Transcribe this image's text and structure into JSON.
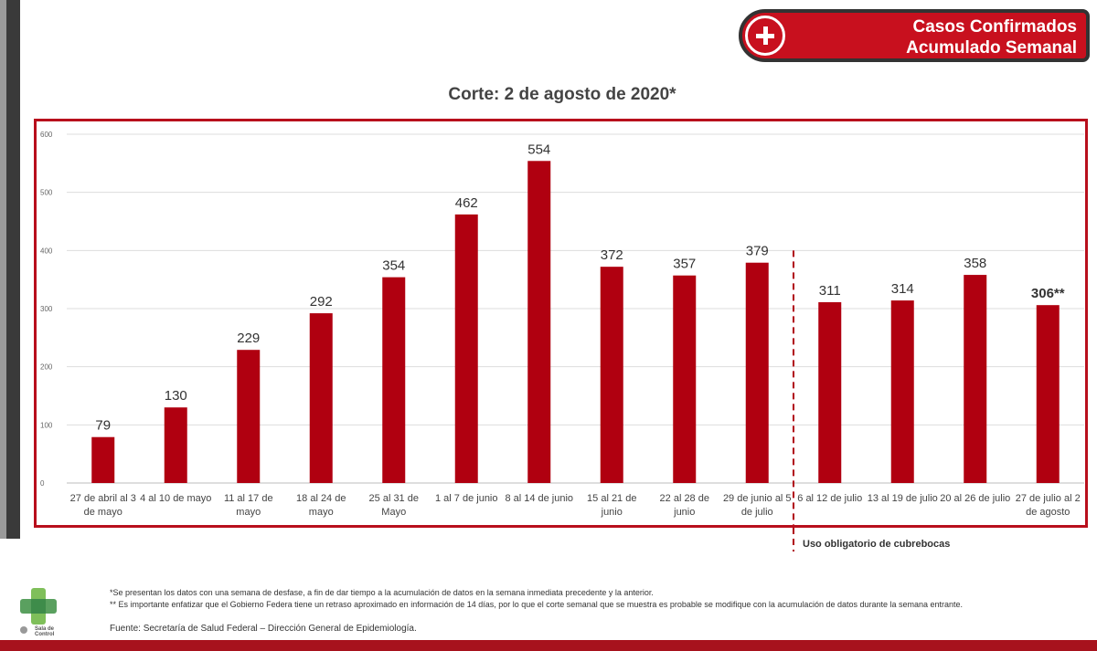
{
  "header": {
    "title_line1": "Casos Confirmados",
    "title_line2": "Acumulado Semanal",
    "accent_color": "#c8101e",
    "icon": "plus-icon"
  },
  "subtitle": "Corte: 2 de agosto de 2020*",
  "chart_data": {
    "type": "bar",
    "title": "",
    "xlabel": "",
    "ylabel": "",
    "ylim": [
      0,
      600
    ],
    "yticks": [
      0,
      100,
      200,
      300,
      400,
      500,
      600
    ],
    "grid": true,
    "bar_color": "#b00010",
    "categories": [
      [
        "27 de abril al 3",
        "de mayo"
      ],
      [
        "4 al 10 de mayo"
      ],
      [
        "11 al 17 de",
        "mayo"
      ],
      [
        "18 al 24 de",
        "mayo"
      ],
      [
        "25 al 31 de",
        "Mayo"
      ],
      [
        "1 al 7 de junio"
      ],
      [
        "8 al 14 de junio"
      ],
      [
        "15 al 21 de",
        "junio"
      ],
      [
        "22 al 28 de",
        "junio"
      ],
      [
        "29 de junio al 5",
        "de julio"
      ],
      [
        "6 al 12 de julio"
      ],
      [
        "13 al 19 de julio"
      ],
      [
        "20 al 26 de julio"
      ],
      [
        "27 de julio al 2",
        "de agosto"
      ]
    ],
    "values": [
      79,
      130,
      229,
      292,
      354,
      462,
      554,
      372,
      357,
      379,
      311,
      314,
      358,
      306
    ],
    "data_labels": [
      "79",
      "130",
      "229",
      "292",
      "354",
      "462",
      "554",
      "372",
      "357",
      "379",
      "311",
      "314",
      "358",
      "306**"
    ],
    "annotation": {
      "text": "Uso obligatorio de cubrebocas",
      "after_category_index": 9,
      "style": "dashed-vertical-line",
      "color": "#b00010"
    }
  },
  "footnotes": {
    "note1": "*Se presentan los datos con una semana de desfase, a fin de dar tiempo a la acumulación de datos en la semana inmediata precedente y la anterior.",
    "note2": "** Es importante enfatizar que el Gobierno Federa tiene un retraso aproximado en información de 14 días, por lo que el corte semanal que se muestra es probable se modifique con la acumulación de datos durante la semana entrante.",
    "source": "Fuente: Secretaría de Salud Federal – Dirección General de Epidemiología."
  },
  "logo": {
    "text_line1": "Sala de",
    "text_line2": "Control",
    "icon": "cross-logo-icon"
  }
}
